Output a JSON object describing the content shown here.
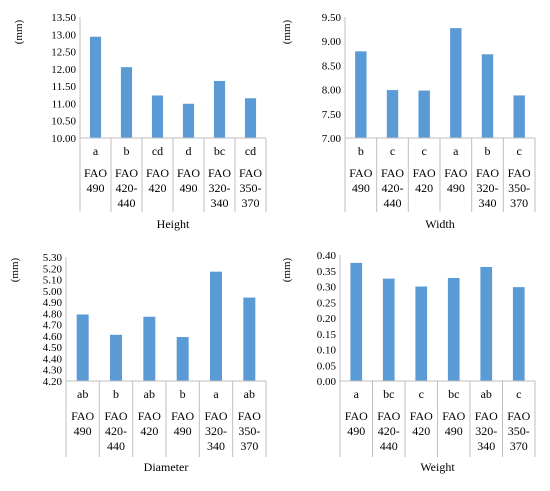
{
  "chart_data": [
    {
      "type": "bar",
      "xlabel": "Height",
      "ylabel": "(mm)",
      "ylim": [
        10.0,
        13.5
      ],
      "yticks": [
        "10.00",
        "10.50",
        "11.00",
        "11.50",
        "12.00",
        "12.50",
        "13.00",
        "13.50"
      ],
      "letters": [
        "a",
        "b",
        "cd",
        "d",
        "bc",
        "cd"
      ],
      "categories": [
        [
          "FAO",
          "490"
        ],
        [
          "FAO",
          "420-",
          "440"
        ],
        [
          "FAO",
          "420"
        ],
        [
          "FAO",
          "490"
        ],
        [
          "FAO",
          "320-",
          "340"
        ],
        [
          "FAO",
          "350-",
          "370"
        ]
      ],
      "values": [
        12.93,
        12.05,
        11.23,
        10.99,
        11.65,
        11.15
      ],
      "grid": false,
      "bar_color": "#5B9BD5"
    },
    {
      "type": "bar",
      "xlabel": "Width",
      "ylabel": "(mm)",
      "ylim": [
        7.0,
        9.5
      ],
      "yticks": [
        "7.00",
        "7.50",
        "8.00",
        "8.50",
        "9.00",
        "9.50"
      ],
      "letters": [
        "b",
        "c",
        "c",
        "a",
        "b",
        "c"
      ],
      "categories": [
        [
          "FAO",
          "490"
        ],
        [
          "FAO",
          "420-",
          "440"
        ],
        [
          "FAO",
          "420"
        ],
        [
          "FAO",
          "490"
        ],
        [
          "FAO",
          "320-",
          "340"
        ],
        [
          "FAO",
          "350-",
          "370"
        ]
      ],
      "values": [
        8.79,
        7.99,
        7.98,
        9.27,
        8.73,
        7.88
      ],
      "grid": false,
      "bar_color": "#5B9BD5"
    },
    {
      "type": "bar",
      "xlabel": "Diameter",
      "ylabel": "(mm)",
      "ylim": [
        4.2,
        5.3
      ],
      "yticks": [
        "4.20",
        "4.30",
        "4.40",
        "4.50",
        "4.60",
        "4.70",
        "4.80",
        "4.90",
        "5.00",
        "5.10",
        "5.20",
        "5.30"
      ],
      "letters": [
        "ab",
        "b",
        "ab",
        "b",
        "a",
        "ab"
      ],
      "categories": [
        [
          "FAO",
          "490"
        ],
        [
          "FAO",
          "420-",
          "440"
        ],
        [
          "FAO",
          "420"
        ],
        [
          "FAO",
          "490"
        ],
        [
          "FAO",
          "320-",
          "340"
        ],
        [
          "FAO",
          "350-",
          "370"
        ]
      ],
      "values": [
        4.79,
        4.61,
        4.77,
        4.59,
        5.17,
        4.94
      ],
      "grid": false,
      "bar_color": "#5B9BD5"
    },
    {
      "type": "bar",
      "xlabel": "Weight",
      "ylabel": "(mm)",
      "ylim": [
        0.0,
        0.4
      ],
      "yticks": [
        "0.00",
        "0.05",
        "0.10",
        "0.15",
        "0.20",
        "0.25",
        "0.30",
        "0.35",
        "0.40"
      ],
      "letters": [
        "a",
        "bc",
        "c",
        "bc",
        "ab",
        "c"
      ],
      "categories": [
        [
          "FAO",
          "490"
        ],
        [
          "FAO",
          "420-",
          "440"
        ],
        [
          "FAO",
          "420"
        ],
        [
          "FAO",
          "490"
        ],
        [
          "FAO",
          "320-",
          "340"
        ],
        [
          "FAO",
          "350-",
          "370"
        ]
      ],
      "values": [
        0.375,
        0.325,
        0.3,
        0.327,
        0.362,
        0.298
      ],
      "grid": false,
      "bar_color": "#5B9BD5"
    }
  ]
}
